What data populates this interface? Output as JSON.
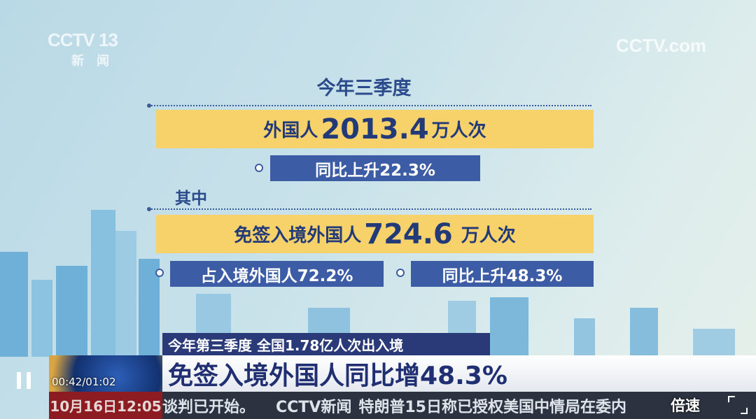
{
  "logos": {
    "channel": "CCTV 13",
    "channel_sub": "新闻",
    "watermark": "CCTV.com"
  },
  "infographic": {
    "title": "今年三季度",
    "row1": {
      "prefix": "外国人",
      "value": "2013.4",
      "unit": "万人次"
    },
    "row1_badge": "同比上升22.3%",
    "subheading": "其中",
    "row2": {
      "prefix": "免签入境外国人",
      "value": "724.6",
      "unit": "万人次"
    },
    "row2_badges": [
      "占入境外国人72.2%",
      "同比上升48.3%"
    ]
  },
  "lower_third": {
    "kicker": "今年第三季度 全国1.78亿人次出入境",
    "headline": "免签入境外国人同比增48.3%"
  },
  "ticker": {
    "datetime": "10月16日12:05",
    "text_left": "谈判已开始。",
    "brand": "CCTV新闻",
    "text_right": "特朗普15日称已授权美国中情局在委内"
  },
  "player": {
    "time": "00:42/01:02",
    "speed_label": "倍速",
    "state": "paused"
  },
  "colors": {
    "yellow": "#f7d26b",
    "navy": "#2a3a78",
    "blue": "#3c5ca5"
  }
}
